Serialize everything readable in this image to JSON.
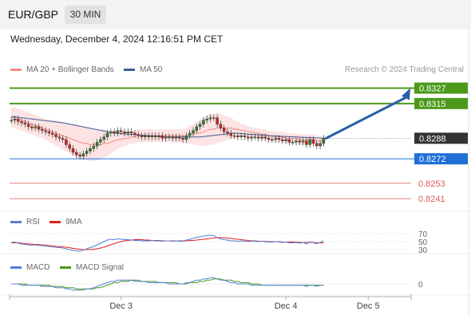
{
  "header": {
    "pair": "EUR/GBP",
    "timeframe": "30 MIN",
    "datetime": "Wednesday, December 4, 2024 12:16:51 PM CET"
  },
  "colors": {
    "ma20": "#f28b82",
    "ma50": "#3f5f9a",
    "bollinger_fill": "#fde3e3",
    "candle_up": "#2e7d32",
    "candle_down": "#c62828",
    "resistance": "#4c9a1a",
    "pivot": "#1f6fd6",
    "support": "#e05a5a",
    "current": "#333333",
    "rsi": "#4f7fd8",
    "rsi_ma": "#e02020",
    "macd": "#4f7fd8",
    "macd_signal": "#4c9a1a",
    "arrow": "#2a5fa8"
  },
  "chart_data": [
    {
      "type": "candlestick",
      "panel": "price",
      "legend": [
        {
          "name": "MA 20 + Bollinger Bands",
          "color": "#f28b82"
        },
        {
          "name": "MA 50",
          "color": "#3f5f9a"
        }
      ],
      "legend_position": "top-left",
      "credit": "Research © 2024 Trading Central",
      "ylim": [
        0.8233,
        0.8336
      ],
      "closes": [
        0.8302,
        0.8303,
        0.8301,
        0.83,
        0.8299,
        0.8297,
        0.8296,
        0.8297,
        0.8295,
        0.8294,
        0.8293,
        0.8292,
        0.8291,
        0.8289,
        0.8288,
        0.8287,
        0.8283,
        0.828,
        0.8277,
        0.8275,
        0.8274,
        0.8276,
        0.8278,
        0.828,
        0.8282,
        0.8285,
        0.8287,
        0.8289,
        0.8292,
        0.8293,
        0.8292,
        0.8294,
        0.8293,
        0.8292,
        0.8293,
        0.8292,
        0.8291,
        0.829,
        0.8289,
        0.829,
        0.8289,
        0.829,
        0.8289,
        0.829,
        0.8288,
        0.8289,
        0.8289,
        0.8288,
        0.8289,
        0.8288,
        0.8287,
        0.829,
        0.8292,
        0.8294,
        0.8297,
        0.8299,
        0.8302,
        0.8303,
        0.8304,
        0.8304,
        0.8299,
        0.8296,
        0.8293,
        0.8292,
        0.829,
        0.829,
        0.8289,
        0.829,
        0.8289,
        0.8288,
        0.8289,
        0.8289,
        0.8288,
        0.8289,
        0.8288,
        0.8287,
        0.8287,
        0.8288,
        0.8287,
        0.8286,
        0.8287,
        0.8285,
        0.8285,
        0.8286,
        0.8285,
        0.8286,
        0.8283,
        0.8287,
        0.8284,
        0.8282,
        0.8284,
        0.8288
      ],
      "ma20": [
        0.8304,
        0.8304,
        0.8303,
        0.8302,
        0.8301,
        0.83,
        0.8299,
        0.8298,
        0.8297,
        0.8296,
        0.8295,
        0.8294,
        0.8293,
        0.8292,
        0.8291,
        0.829,
        0.8289,
        0.8288,
        0.8287,
        0.8286,
        0.8285,
        0.8284,
        0.8284,
        0.8283,
        0.8283,
        0.8283,
        0.8283,
        0.8284,
        0.8284,
        0.8285,
        0.8286,
        0.8287,
        0.8287,
        0.8288,
        0.8288,
        0.8289,
        0.8289,
        0.829,
        0.829,
        0.829,
        0.829,
        0.829,
        0.829,
        0.829,
        0.829,
        0.829,
        0.829,
        0.829,
        0.829,
        0.829,
        0.829,
        0.829,
        0.8291,
        0.8291,
        0.8292,
        0.8292,
        0.8293,
        0.8294,
        0.8295,
        0.8295,
        0.8296,
        0.8296,
        0.8296,
        0.8296,
        0.8296,
        0.8295,
        0.8295,
        0.8294,
        0.8294,
        0.8293,
        0.8293,
        0.8292,
        0.8292,
        0.8291,
        0.8291,
        0.829,
        0.829,
        0.8289,
        0.8289,
        0.8289,
        0.8288,
        0.8288,
        0.8288,
        0.8288,
        0.8287,
        0.8287,
        0.8287,
        0.8287,
        0.8287,
        0.8286,
        0.8286,
        0.8286
      ],
      "bb_width": [
        0.0008,
        0.0008,
        0.0008,
        0.0008,
        0.0008,
        0.0008,
        0.0008,
        0.0008,
        0.0008,
        0.0008,
        0.0008,
        0.0009,
        0.0009,
        0.001,
        0.001,
        0.0011,
        0.0011,
        0.0012,
        0.0012,
        0.0013,
        0.0013,
        0.0013,
        0.0013,
        0.0013,
        0.0013,
        0.0012,
        0.0012,
        0.0011,
        0.001,
        0.0009,
        0.0008,
        0.0007,
        0.0006,
        0.0006,
        0.0005,
        0.0005,
        0.0005,
        0.0005,
        0.0005,
        0.0005,
        0.0005,
        0.0005,
        0.0005,
        0.0005,
        0.0005,
        0.0005,
        0.0005,
        0.0005,
        0.0005,
        0.0005,
        0.0005,
        0.0006,
        0.0007,
        0.0008,
        0.0009,
        0.001,
        0.0011,
        0.0012,
        0.0012,
        0.0012,
        0.0012,
        0.0011,
        0.001,
        0.0009,
        0.0008,
        0.0007,
        0.0006,
        0.0005,
        0.0005,
        0.0004,
        0.0004,
        0.0004,
        0.0004,
        0.0004,
        0.0004,
        0.0004,
        0.0004,
        0.0004,
        0.0004,
        0.0004,
        0.0004,
        0.0004,
        0.0004,
        0.0004,
        0.0004,
        0.0004,
        0.0004,
        0.0004,
        0.0004,
        0.0004,
        0.0004,
        0.0004
      ],
      "ma50_points": [
        [
          0,
          0.8305
        ],
        [
          15,
          0.83
        ],
        [
          30,
          0.8292
        ],
        [
          45,
          0.8289
        ],
        [
          55,
          0.8289
        ],
        [
          65,
          0.8292
        ],
        [
          75,
          0.829
        ],
        [
          91,
          0.8288
        ]
      ],
      "levels": [
        {
          "value": 0.8327,
          "label": "0.8327",
          "kind": "resistance"
        },
        {
          "value": 0.8315,
          "label": "0.8315",
          "kind": "resistance"
        },
        {
          "value": 0.8288,
          "label": "0.8288",
          "kind": "current"
        },
        {
          "value": 0.8272,
          "label": "0.8272",
          "kind": "pivot"
        },
        {
          "value": 0.8253,
          "label": "0.8253",
          "kind": "support"
        },
        {
          "value": 0.8241,
          "label": "0.8241",
          "kind": "support"
        }
      ],
      "forecast_arrow": {
        "from": 0.8288,
        "to": 0.8327
      }
    },
    {
      "type": "line",
      "panel": "rsi",
      "legend": [
        {
          "name": "RSI",
          "color": "#4f7fd8"
        },
        {
          "name": "9MA",
          "color": "#e02020"
        }
      ],
      "ylim": [
        20,
        80
      ],
      "ticks": [
        "70",
        "50",
        "30"
      ],
      "tick_values": [
        70,
        50,
        30
      ],
      "rsi": [
        48,
        49,
        46,
        44,
        43,
        42,
        41,
        42,
        40,
        40,
        39,
        38,
        37,
        36,
        35,
        34,
        32,
        30,
        28,
        27,
        26,
        29,
        32,
        35,
        38,
        42,
        46,
        50,
        54,
        56,
        55,
        57,
        56,
        55,
        55,
        54,
        53,
        53,
        52,
        52,
        52,
        53,
        52,
        52,
        51,
        52,
        52,
        51,
        52,
        51,
        51,
        54,
        56,
        58,
        61,
        62,
        64,
        65,
        66,
        65,
        60,
        57,
        55,
        54,
        52,
        52,
        51,
        52,
        51,
        50,
        51,
        51,
        50,
        51,
        50,
        49,
        49,
        50,
        49,
        48,
        49,
        47,
        47,
        48,
        46,
        48,
        44,
        50,
        47,
        45,
        48,
        52
      ],
      "ma": [
        47,
        47,
        47,
        46,
        45,
        44,
        44,
        43,
        43,
        42,
        41,
        40,
        39,
        38,
        37,
        37,
        36,
        35,
        33,
        32,
        31,
        30,
        30,
        30,
        31,
        32,
        34,
        36,
        39,
        42,
        45,
        48,
        50,
        52,
        53,
        54,
        55,
        55,
        55,
        54,
        54,
        53,
        53,
        53,
        52,
        52,
        52,
        52,
        52,
        52,
        52,
        52,
        53,
        53,
        54,
        55,
        56,
        57,
        58,
        59,
        60,
        60,
        60,
        59,
        58,
        57,
        56,
        55,
        54,
        53,
        52,
        52,
        51,
        51,
        51,
        50,
        50,
        50,
        50,
        49,
        49,
        49,
        49,
        49,
        48,
        48,
        48,
        48,
        48,
        47,
        47,
        47
      ]
    },
    {
      "type": "line",
      "panel": "macd",
      "legend": [
        {
          "name": "MACD",
          "color": "#4f7fd8"
        },
        {
          "name": "MACD Signal",
          "color": "#4c9a1a"
        }
      ],
      "ylim": [
        -0.0009,
        0.0009
      ],
      "ticks": [
        "0"
      ],
      "tick_values": [
        0
      ],
      "macd": [
        0.0,
        0.0,
        0.0,
        -0.0001,
        -0.0001,
        -0.0001,
        -0.0001,
        -0.0001,
        -0.0001,
        -0.0002,
        -0.0002,
        -0.0002,
        -0.0002,
        -0.0003,
        -0.0003,
        -0.0003,
        -0.0004,
        -0.0004,
        -0.0005,
        -0.0005,
        -0.0005,
        -0.0005,
        -0.0004,
        -0.0004,
        -0.0003,
        -0.0002,
        -0.0001,
        0.0,
        0.0001,
        0.0002,
        0.0002,
        0.0003,
        0.0003,
        0.0003,
        0.0003,
        0.0003,
        0.0002,
        0.0002,
        0.0002,
        0.0002,
        0.0001,
        0.0001,
        0.0001,
        0.0001,
        0.0001,
        0.0001,
        0.0,
        0.0,
        0.0,
        0.0,
        0.0,
        0.0001,
        0.0001,
        0.0002,
        0.0003,
        0.0003,
        0.0004,
        0.0004,
        0.0005,
        0.0005,
        0.0004,
        0.0003,
        0.0003,
        0.0002,
        0.0001,
        0.0001,
        0.0,
        0.0,
        0.0,
        0.0,
        -0.0001,
        -0.0001,
        -0.0001,
        -0.0001,
        -0.0001,
        -0.0001,
        -0.0001,
        -0.0001,
        -0.0001,
        -0.0001,
        -0.0001,
        -0.0001,
        -0.0001,
        -0.0001,
        -0.0001,
        -0.0001,
        -0.0002,
        -0.0001,
        -0.0001,
        -0.0002,
        -0.0001,
        -0.0001
      ],
      "signal": [
        0.0,
        0.0,
        0.0,
        0.0,
        0.0,
        -0.0001,
        -0.0001,
        -0.0001,
        -0.0001,
        -0.0001,
        -0.0001,
        -0.0001,
        -0.0002,
        -0.0002,
        -0.0002,
        -0.0002,
        -0.0003,
        -0.0003,
        -0.0003,
        -0.0004,
        -0.0004,
        -0.0004,
        -0.0004,
        -0.0004,
        -0.0004,
        -0.0003,
        -0.0003,
        -0.0002,
        -0.0001,
        0.0,
        0.0001,
        0.0001,
        0.0002,
        0.0002,
        0.0002,
        0.0003,
        0.0003,
        0.0003,
        0.0002,
        0.0002,
        0.0002,
        0.0002,
        0.0002,
        0.0001,
        0.0001,
        0.0001,
        0.0001,
        0.0001,
        0.0001,
        0.0,
        0.0,
        0.0,
        0.0001,
        0.0001,
        0.0001,
        0.0002,
        0.0002,
        0.0003,
        0.0003,
        0.0004,
        0.0004,
        0.0004,
        0.0003,
        0.0003,
        0.0003,
        0.0002,
        0.0002,
        0.0001,
        0.0001,
        0.0001,
        0.0,
        0.0,
        0.0,
        -0.0001,
        -0.0001,
        -0.0001,
        -0.0001,
        -0.0001,
        -0.0001,
        -0.0001,
        -0.0001,
        -0.0001,
        -0.0001,
        -0.0001,
        -0.0001,
        -0.0001,
        -0.0001,
        -0.0001,
        -0.0001,
        -0.0001,
        -0.0001,
        -0.0001
      ]
    },
    {
      "type": "axis",
      "panel": "x-axis",
      "labels": [
        {
          "text": "Dec 3",
          "bar": 32
        },
        {
          "text": "Dec 4",
          "bar": 80
        },
        {
          "text": "Dec 5",
          "bar": 104
        }
      ],
      "bars_total": 117
    }
  ]
}
